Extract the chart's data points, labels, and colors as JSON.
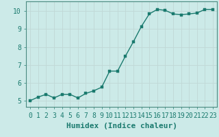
{
  "x": [
    0,
    1,
    2,
    3,
    4,
    5,
    6,
    7,
    8,
    9,
    10,
    11,
    12,
    13,
    14,
    15,
    16,
    17,
    18,
    19,
    20,
    21,
    22,
    23
  ],
  "y": [
    5.0,
    5.2,
    5.35,
    5.15,
    5.35,
    5.35,
    5.15,
    5.4,
    5.55,
    5.75,
    6.65,
    6.65,
    7.5,
    8.3,
    9.15,
    9.85,
    10.1,
    10.05,
    9.85,
    9.8,
    9.85,
    9.9,
    10.1,
    10.1
  ],
  "line_color": "#1a7a6e",
  "marker_color": "#1a7a6e",
  "bg_color": "#cceae8",
  "grid_color": "#c0d8d6",
  "xlabel": "Humidex (Indice chaleur)",
  "ylabel_ticks": [
    5,
    6,
    7,
    8,
    9,
    10
  ],
  "xlim": [
    -0.5,
    23.5
  ],
  "ylim": [
    4.65,
    10.55
  ],
  "xlabel_fontsize": 8,
  "tick_fontsize": 7,
  "line_width": 1.0,
  "marker_size": 2.5
}
